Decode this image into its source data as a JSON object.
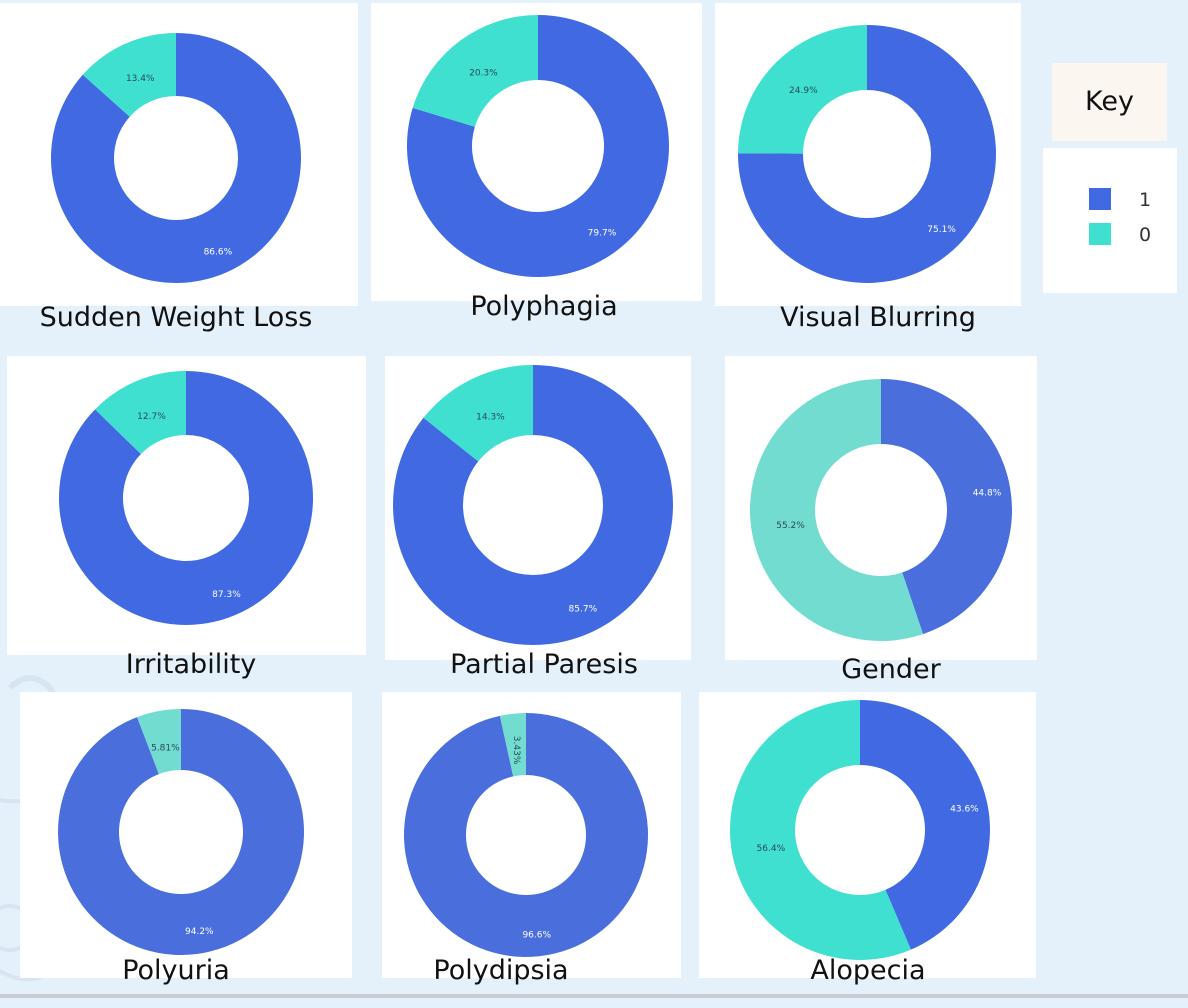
{
  "legend": {
    "title": "Key",
    "items": [
      {
        "label": "1",
        "color": "#4169e1"
      },
      {
        "label": "0",
        "color": "#40e0d0"
      }
    ]
  },
  "chart_data": [
    {
      "type": "pie",
      "title": "Sudden Weight Loss",
      "categories": [
        "1",
        "0"
      ],
      "values": [
        86.6,
        13.4
      ],
      "labels": [
        "86.6%",
        "13.4%"
      ],
      "colors": [
        "#4169e1",
        "#40e0d0"
      ]
    },
    {
      "type": "pie",
      "title": "Polyphagia",
      "categories": [
        "1",
        "0"
      ],
      "values": [
        79.7,
        20.3
      ],
      "labels": [
        "79.7%",
        "20.3%"
      ],
      "colors": [
        "#4169e1",
        "#40e0d0"
      ]
    },
    {
      "type": "pie",
      "title": "Visual Blurring",
      "categories": [
        "1",
        "0"
      ],
      "values": [
        75.1,
        24.9
      ],
      "labels": [
        "75.1%",
        "24.9%"
      ],
      "colors": [
        "#4169e1",
        "#40e0d0"
      ]
    },
    {
      "type": "pie",
      "title": "Irritability",
      "categories": [
        "1",
        "0"
      ],
      "values": [
        87.3,
        12.7
      ],
      "labels": [
        "87.3%",
        "12.7%"
      ],
      "colors": [
        "#4169e1",
        "#40e0d0"
      ]
    },
    {
      "type": "pie",
      "title": "Partial Paresis",
      "categories": [
        "1",
        "0"
      ],
      "values": [
        85.7,
        14.3
      ],
      "labels": [
        "85.7%",
        "14.3%"
      ],
      "colors": [
        "#4169e1",
        "#40e0d0"
      ]
    },
    {
      "type": "pie",
      "title": "Gender",
      "categories": [
        "1",
        "0"
      ],
      "values": [
        44.8,
        55.2
      ],
      "labels": [
        "44.8%",
        "55.2%"
      ],
      "colors": [
        "#4a6fdc",
        "#72dcd0"
      ]
    },
    {
      "type": "pie",
      "title": "Polyuria",
      "categories": [
        "1",
        "0"
      ],
      "values": [
        94.2,
        5.81
      ],
      "labels": [
        "94.2%",
        "5.81%"
      ],
      "colors": [
        "#4a6fdc",
        "#72dcd0"
      ]
    },
    {
      "type": "pie",
      "title": "Polydipsia",
      "categories": [
        "1",
        "0"
      ],
      "values": [
        96.6,
        3.43
      ],
      "labels": [
        "96.6%",
        "3.43%"
      ],
      "colors": [
        "#4a6fdc",
        "#72dcd0"
      ]
    },
    {
      "type": "pie",
      "title": "Alopecia",
      "categories": [
        "1",
        "0"
      ],
      "values": [
        43.6,
        56.4
      ],
      "labels": [
        "43.6%",
        "56.4%"
      ],
      "colors": [
        "#4169e1",
        "#40e0d0"
      ]
    }
  ]
}
